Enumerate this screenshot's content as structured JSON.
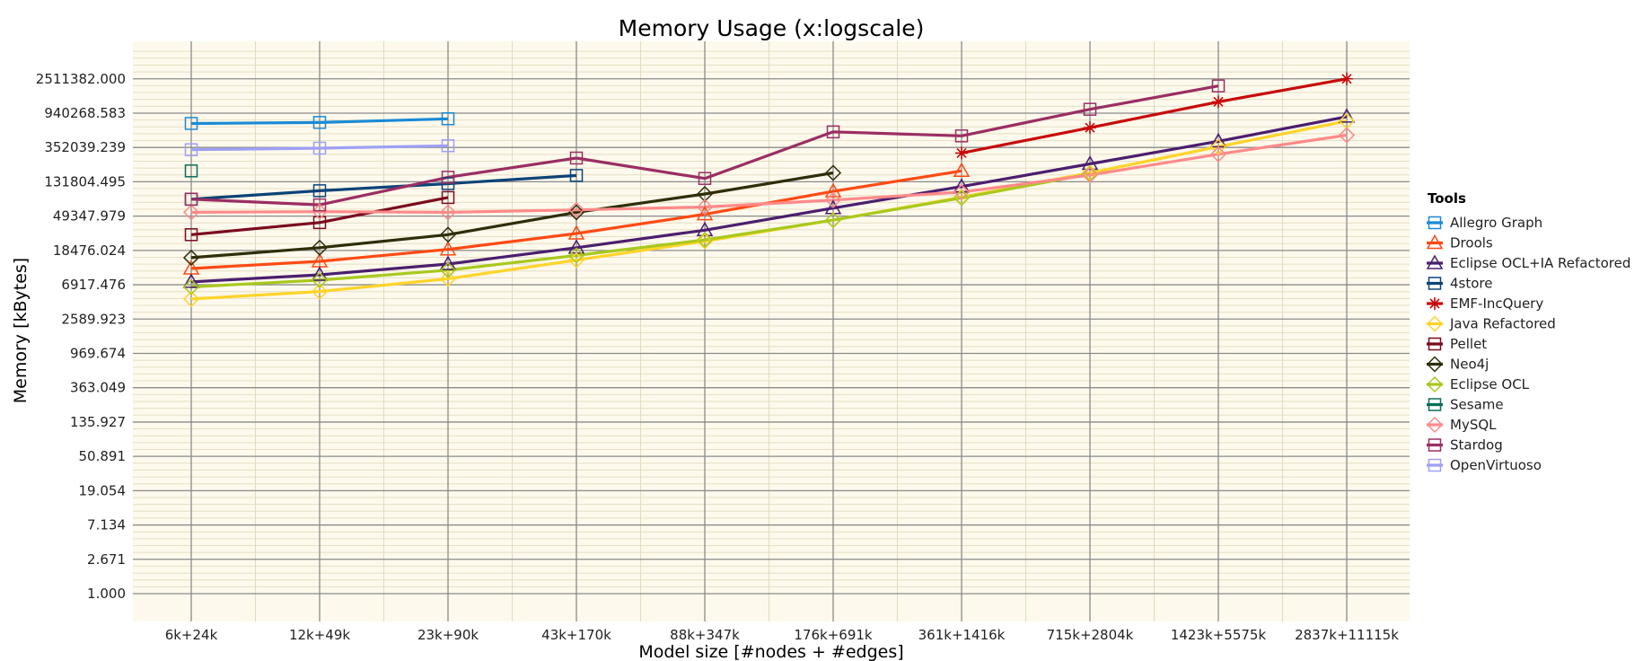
{
  "chart_data": {
    "type": "line",
    "title": "Memory Usage (x:logscale)",
    "xlabel": "Model size [#nodes + #edges]",
    "ylabel": "Memory [kBytes]",
    "y_scale": "log",
    "grid": true,
    "legend_placement": "right",
    "legend_title": "Tools",
    "categories": [
      "6k+24k",
      "12k+49k",
      "23k+90k",
      "43k+170k",
      "88k+347k",
      "176k+691k",
      "361k+1416k",
      "715k+2804k",
      "1423k+5575k",
      "2837k+11115k"
    ],
    "y_ticks": [
      1,
      2.671,
      7.134,
      19.054,
      50.891,
      135.927,
      363.049,
      969.674,
      2589.923,
      6917.476,
      18476.024,
      49347.979,
      131804.495,
      352039.239,
      940268.583,
      2511382.0
    ],
    "y_tick_labels": [
      "1.000",
      "2.671",
      "7.134",
      "19.054",
      "50.891",
      "135.927",
      "363.049",
      "969.674",
      "2589.923",
      "6917.476",
      "18476.024",
      "49347.979",
      "131804.495",
      "352039.239",
      "940268.583",
      "2511382.000"
    ],
    "series": [
      {
        "name": "Allegro Graph",
        "color": "#1a8ad4",
        "marker": "square",
        "values": [
          700000,
          720000,
          800000,
          null,
          null,
          null,
          null,
          null,
          null,
          null
        ]
      },
      {
        "name": "Drools",
        "color": "#ff4a14",
        "marker": "triangle",
        "values": [
          11000,
          13500,
          19000,
          30000,
          52000,
          100000,
          180000,
          null,
          null,
          null
        ]
      },
      {
        "name": "Eclipse OCL+IA Refactored",
        "color": "#4b1e6e",
        "marker": "triangle",
        "values": [
          7500,
          9200,
          12500,
          20000,
          33000,
          62000,
          115000,
          220000,
          420000,
          850000
        ]
      },
      {
        "name": "4store",
        "color": "#0c4378",
        "marker": "square",
        "values": [
          80000,
          102000,
          125000,
          158000,
          null,
          null,
          null,
          null,
          null,
          null
        ]
      },
      {
        "name": "EMF-IncQuery",
        "color": "#c80a0a",
        "marker": "asterisk",
        "values": [
          null,
          null,
          null,
          null,
          null,
          null,
          300000,
          620000,
          1300000,
          2511382
        ]
      },
      {
        "name": "Java Refactored",
        "color": "#ffd42a",
        "marker": "diamond",
        "values": [
          4600,
          5700,
          8200,
          14000,
          24000,
          44000,
          85000,
          170000,
          360000,
          750000
        ]
      },
      {
        "name": "Pellet",
        "color": "#7a0a1e",
        "marker": "square",
        "values": [
          29000,
          41000,
          84000,
          null,
          null,
          null,
          null,
          null,
          null,
          null
        ]
      },
      {
        "name": "Neo4j",
        "color": "#2e2e0a",
        "marker": "diamond",
        "values": [
          15000,
          20000,
          29000,
          55000,
          93000,
          170000,
          null,
          null,
          null,
          null
        ]
      },
      {
        "name": "Eclipse OCL",
        "color": "#a8c81e",
        "marker": "diamond",
        "values": [
          6500,
          7900,
          10500,
          16000,
          25000,
          44000,
          83000,
          165000,
          null,
          null
        ]
      },
      {
        "name": "Sesame",
        "color": "#0a6e5a",
        "marker": "square",
        "values": [
          180000,
          null,
          null,
          null,
          null,
          null,
          null,
          null,
          null,
          null
        ]
      },
      {
        "name": "MySQL",
        "color": "#ff8a8a",
        "marker": "diamond",
        "values": [
          55000,
          56000,
          55000,
          59000,
          64000,
          78000,
          98000,
          160000,
          290000,
          500000
        ]
      },
      {
        "name": "Stardog",
        "color": "#9a2e64",
        "marker": "square",
        "values": [
          80000,
          68000,
          150000,
          260000,
          145000,
          550000,
          490000,
          1050000,
          2050000,
          null
        ]
      },
      {
        "name": "OpenVirtuoso",
        "color": "#9f9ff5",
        "marker": "square",
        "values": [
          330000,
          345000,
          370000,
          null,
          null,
          null,
          null,
          null,
          null,
          null
        ]
      }
    ]
  }
}
